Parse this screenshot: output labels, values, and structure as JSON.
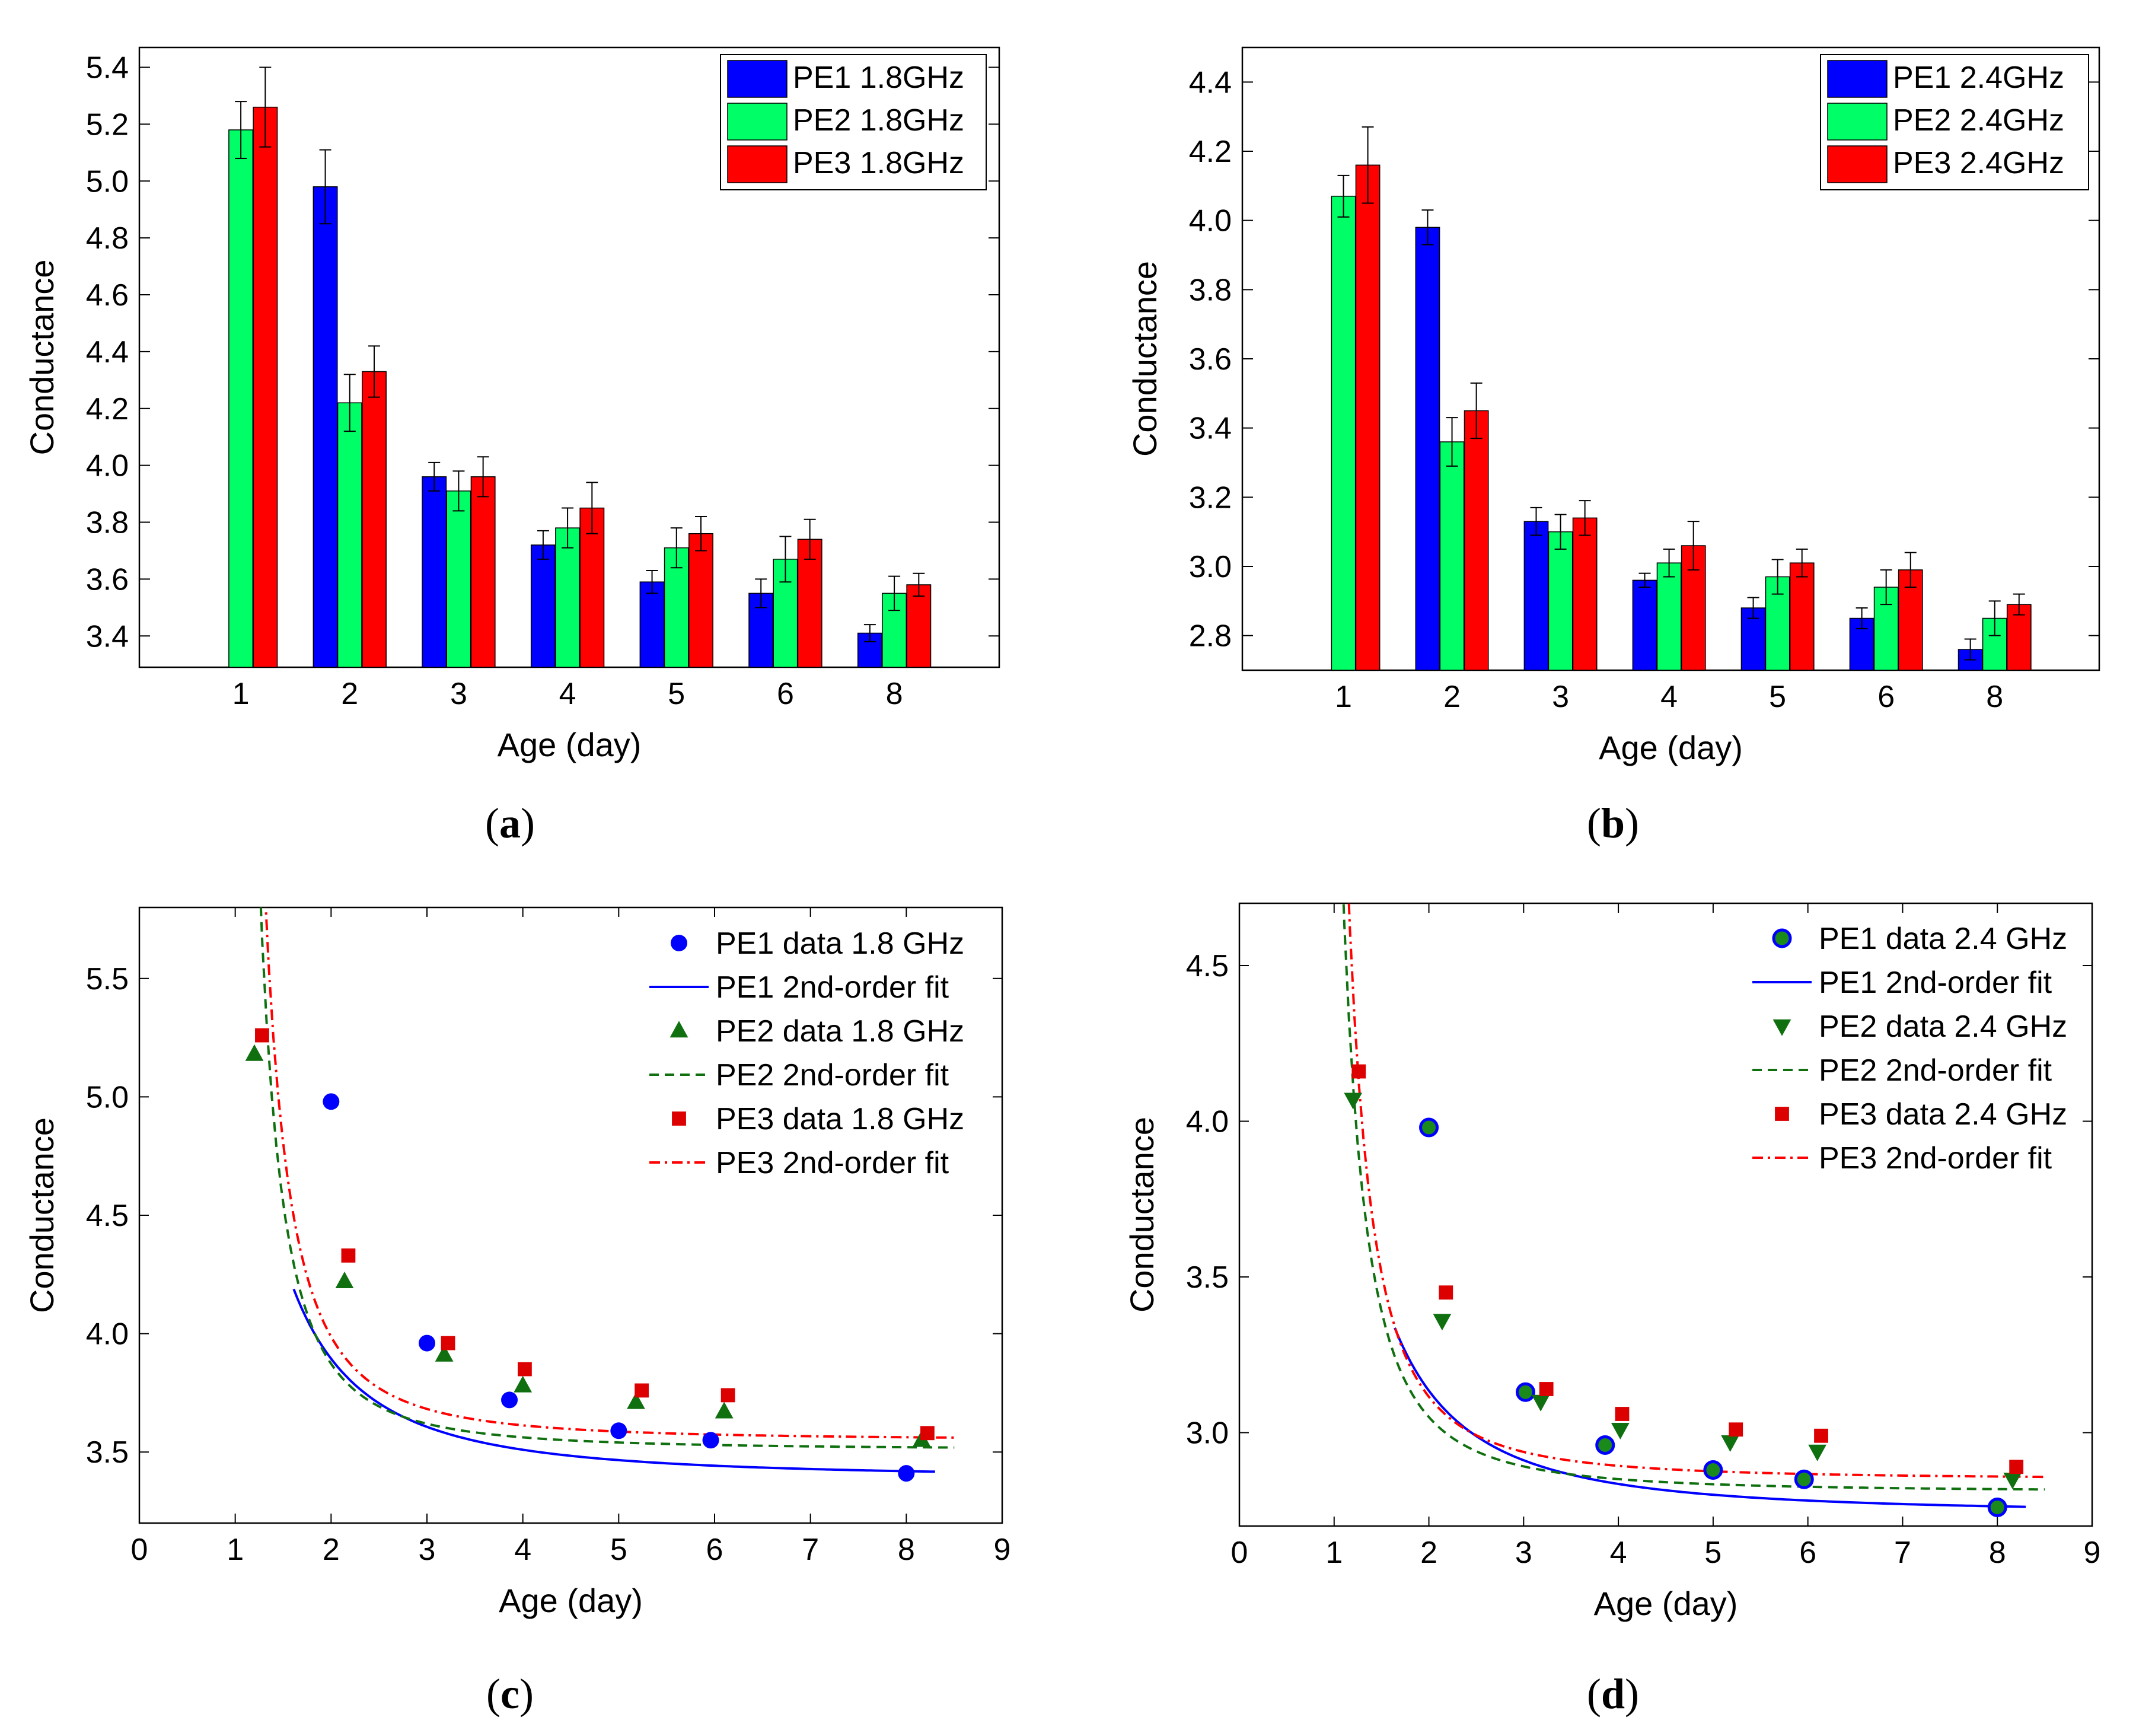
{
  "captions": {
    "a": "a",
    "b": "b",
    "c": "c",
    "d": "d"
  },
  "chart_data": [
    {
      "id": "a",
      "type": "bar",
      "xlabel": "Age (day)",
      "ylabel": "Conductance",
      "ylim": [
        3.29,
        5.47
      ],
      "yticks": [
        "3.4",
        "3.6",
        "3.8",
        "4.0",
        "4.2",
        "4.4",
        "4.6",
        "4.8",
        "5.0",
        "5.2",
        "5.4"
      ],
      "categories": [
        "1",
        "2",
        "3",
        "4",
        "5",
        "6",
        "8"
      ],
      "series": [
        {
          "name": "PE1 1.8GHz",
          "color": "#0000ff",
          "values": [
            null,
            4.98,
            3.96,
            3.72,
            3.59,
            3.55,
            3.41
          ],
          "errors": [
            null,
            0.13,
            0.05,
            0.05,
            0.04,
            0.05,
            0.03
          ]
        },
        {
          "name": "PE2 1.8GHz",
          "color": "#00ff66",
          "values": [
            5.18,
            4.22,
            3.91,
            3.78,
            3.71,
            3.67,
            3.55
          ],
          "errors": [
            0.1,
            0.1,
            0.07,
            0.07,
            0.07,
            0.08,
            0.06
          ]
        },
        {
          "name": "PE3 1.8GHz",
          "color": "#ff0000",
          "values": [
            5.26,
            4.33,
            3.96,
            3.85,
            3.76,
            3.74,
            3.58
          ],
          "errors": [
            0.14,
            0.09,
            0.07,
            0.09,
            0.06,
            0.07,
            0.04
          ]
        }
      ]
    },
    {
      "id": "b",
      "type": "bar",
      "xlabel": "Age (day)",
      "ylabel": "Conductance",
      "ylim": [
        2.7,
        4.5
      ],
      "yticks": [
        "2.8",
        "3.0",
        "3.2",
        "3.4",
        "3.6",
        "3.8",
        "4.0",
        "4.2",
        "4.4"
      ],
      "categories": [
        "1",
        "2",
        "3",
        "4",
        "5",
        "6",
        "8"
      ],
      "series": [
        {
          "name": "PE1 2.4GHz",
          "color": "#0000ff",
          "values": [
            null,
            3.98,
            3.13,
            2.96,
            2.88,
            2.85,
            2.76
          ],
          "errors": [
            null,
            0.05,
            0.04,
            0.02,
            0.03,
            0.03,
            0.03
          ]
        },
        {
          "name": "PE2 2.4GHz",
          "color": "#00ff66",
          "values": [
            4.07,
            3.36,
            3.1,
            3.01,
            2.97,
            2.94,
            2.85
          ],
          "errors": [
            0.06,
            0.07,
            0.05,
            0.04,
            0.05,
            0.05,
            0.05
          ]
        },
        {
          "name": "PE3 2.4GHz",
          "color": "#ff0000",
          "values": [
            4.16,
            3.45,
            3.14,
            3.06,
            3.01,
            2.99,
            2.89
          ],
          "errors": [
            0.11,
            0.08,
            0.05,
            0.07,
            0.04,
            0.05,
            0.03
          ]
        }
      ]
    },
    {
      "id": "c",
      "type": "scatter",
      "xlabel": "Age (day)",
      "ylabel": "Conductance",
      "xlim": [
        0,
        9
      ],
      "ylim": [
        3.2,
        5.8
      ],
      "xticks": [
        "0",
        "1",
        "2",
        "3",
        "4",
        "5",
        "6",
        "7",
        "8",
        "9"
      ],
      "yticks": [
        "3.5",
        "4.0",
        "4.5",
        "5.0",
        "5.5"
      ],
      "series": [
        {
          "name": "PE1 data 1.8 GHz",
          "kind": "points",
          "marker": "circle",
          "color": "#0000ff",
          "x": [
            2.0,
            3.0,
            3.86,
            5.0,
            5.96,
            8.0
          ],
          "y": [
            4.98,
            3.96,
            3.72,
            3.59,
            3.55,
            3.41
          ]
        },
        {
          "name": "PE1 2nd-order fit",
          "kind": "fit",
          "dash": "solid",
          "color": "#0000ff",
          "fit": {
            "a": 3.39,
            "b": 1.82,
            "c": 0.1,
            "x0": 1.61,
            "x1": 8.3
          }
        },
        {
          "name": "PE2 data 1.8 GHz",
          "kind": "points",
          "marker": "triangle-up",
          "color": "#107010",
          "x": [
            1.2,
            2.14,
            3.18,
            4.0,
            5.18,
            6.1,
            8.16
          ],
          "y": [
            5.18,
            4.22,
            3.91,
            3.78,
            3.71,
            3.67,
            3.55
          ]
        },
        {
          "name": "PE2 2nd-order fit",
          "kind": "fit",
          "dash": "dashed",
          "color": "#107010",
          "fit": {
            "a": 3.51,
            "b": 0.54,
            "c": 0.78,
            "x0": 0.75,
            "x1": 8.5
          }
        },
        {
          "name": "PE3 data 1.8 GHz",
          "kind": "points",
          "marker": "square",
          "color": "#dd0000",
          "x": [
            1.28,
            2.18,
            3.22,
            4.02,
            5.24,
            6.14,
            8.22
          ],
          "y": [
            5.26,
            4.33,
            3.96,
            3.85,
            3.76,
            3.74,
            3.58
          ]
        },
        {
          "name": "PE3 2nd-order fit",
          "kind": "fit",
          "dash": "dashdot",
          "color": "#ff0000",
          "fit": {
            "a": 3.55,
            "b": 0.65,
            "c": 0.78,
            "x0": 0.82,
            "x1": 8.52
          }
        }
      ]
    },
    {
      "id": "d",
      "type": "scatter",
      "xlabel": "Age (day)",
      "ylabel": "Conductance",
      "xlim": [
        0,
        9
      ],
      "ylim": [
        2.7,
        4.7
      ],
      "xticks": [
        "0",
        "1",
        "2",
        "3",
        "4",
        "5",
        "6",
        "7",
        "8",
        "9"
      ],
      "yticks": [
        "3.0",
        "3.5",
        "4.0",
        "4.5"
      ],
      "series": [
        {
          "name": "PE1 data 2.4 GHz",
          "kind": "points",
          "marker": "circle-green",
          "color": "#0000ff",
          "x": [
            2.0,
            3.02,
            3.86,
            5.0,
            5.96,
            8.0
          ],
          "y": [
            3.98,
            3.13,
            2.96,
            2.88,
            2.85,
            2.76
          ]
        },
        {
          "name": "PE1 2nd-order fit",
          "kind": "fit",
          "dash": "solid",
          "color": "#0000ff",
          "fit": {
            "a": 2.74,
            "b": 1.47,
            "c": 0.07,
            "x0": 1.64,
            "x1": 8.3
          }
        },
        {
          "name": "PE2 data 2.4 GHz",
          "kind": "points",
          "marker": "triangle-down",
          "color": "#107010",
          "x": [
            1.2,
            2.14,
            3.18,
            4.02,
            5.18,
            6.1,
            8.16
          ],
          "y": [
            4.07,
            3.36,
            3.1,
            3.01,
            2.97,
            2.94,
            2.85
          ]
        },
        {
          "name": "PE2 2nd-order fit",
          "kind": "fit",
          "dash": "dashed",
          "color": "#107010",
          "fit": {
            "a": 2.81,
            "b": 0.47,
            "c": 0.6,
            "x0": 0.82,
            "x1": 8.5
          }
        },
        {
          "name": "PE3 data 2.4 GHz",
          "kind": "points",
          "marker": "square",
          "color": "#dd0000",
          "x": [
            1.26,
            2.18,
            3.24,
            4.04,
            5.24,
            6.14,
            8.2
          ],
          "y": [
            4.16,
            3.45,
            3.14,
            3.06,
            3.01,
            2.99,
            2.89
          ]
        },
        {
          "name": "PE3 2nd-order fit",
          "kind": "fit",
          "dash": "dashdot",
          "color": "#ff0000",
          "fit": {
            "a": 2.85,
            "b": 0.49,
            "c": 0.64,
            "x0": 0.88,
            "x1": 8.52
          }
        }
      ]
    }
  ]
}
